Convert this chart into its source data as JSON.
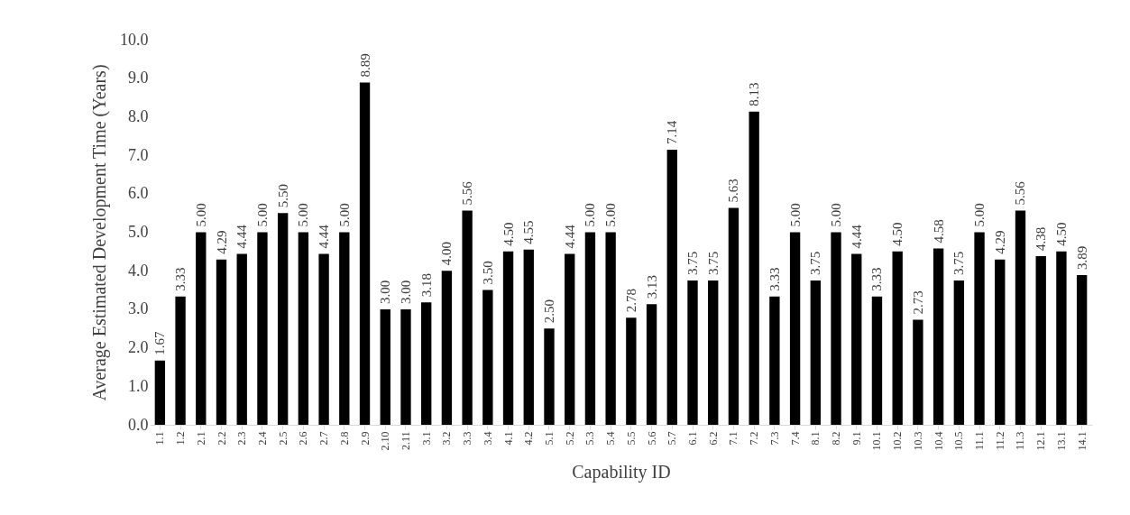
{
  "chart_data": {
    "type": "bar",
    "xlabel": "Capability ID",
    "ylabel": "Average Estimated Development Time (Years)",
    "categories": [
      "1.1",
      "1.2",
      "2.1",
      "2.2",
      "2.3",
      "2.4",
      "2.5",
      "2.6",
      "2.7",
      "2.8",
      "2.9",
      "2.10",
      "2.11",
      "3.1",
      "3.2",
      "3.3",
      "3.4",
      "4.1",
      "4.2",
      "5.1",
      "5.2",
      "5.3",
      "5.4",
      "5.5",
      "5.6",
      "5.7",
      "6.1",
      "6.2",
      "7.1",
      "7.2",
      "7.3",
      "7.4",
      "8.1",
      "8.2",
      "9.1",
      "10.1",
      "10.2",
      "10.3",
      "10.4",
      "10.5",
      "11.1",
      "11.2",
      "11.3",
      "12.1",
      "13.1",
      "14.1"
    ],
    "values": [
      1.67,
      3.33,
      5.0,
      4.29,
      4.44,
      5.0,
      5.5,
      5.0,
      4.44,
      5.0,
      8.89,
      3.0,
      3.0,
      3.18,
      4.0,
      5.56,
      3.5,
      4.5,
      4.55,
      2.5,
      4.44,
      5.0,
      5.0,
      2.78,
      3.13,
      7.14,
      3.75,
      3.75,
      5.63,
      8.13,
      3.33,
      5.0,
      3.75,
      5.0,
      4.44,
      3.33,
      4.5,
      2.73,
      4.58,
      3.75,
      5.0,
      4.29,
      5.56,
      4.38,
      4.5,
      3.89
    ],
    "value_labels": [
      "1.67",
      "3.33",
      "5.00",
      "4.29",
      "4.44",
      "5.00",
      "5.50",
      "5.00",
      "4.44",
      "5.00",
      "8.89",
      "3.00",
      "3.00",
      "3.18",
      "4.00",
      "5.56",
      "3.50",
      "4.50",
      "4.55",
      "2.50",
      "4.44",
      "5.00",
      "5.00",
      "2.78",
      "3.13",
      "7.14",
      "3.75",
      "3.75",
      "5.63",
      "8.13",
      "3.33",
      "5.00",
      "3.75",
      "5.00",
      "4.44",
      "3.33",
      "4.50",
      "2.73",
      "4.58",
      "3.75",
      "5.00",
      "4.29",
      "5.56",
      "4.38",
      "4.50",
      "3.89"
    ],
    "color": "#000000",
    "ylim": [
      0,
      10
    ],
    "yticks": [
      {
        "value": 0,
        "label": "0.0"
      },
      {
        "value": 1,
        "label": "1.0"
      },
      {
        "value": 2,
        "label": "2.0"
      },
      {
        "value": 3,
        "label": "3.0"
      },
      {
        "value": 4,
        "label": "4.0"
      },
      {
        "value": 5,
        "label": "5.0"
      },
      {
        "value": 6,
        "label": "6.0"
      },
      {
        "value": 7,
        "label": "7.0"
      },
      {
        "value": 8,
        "label": "8.0"
      },
      {
        "value": 9,
        "label": "9.0"
      },
      {
        "value": 10,
        "label": "10.0"
      }
    ],
    "grid": false
  }
}
